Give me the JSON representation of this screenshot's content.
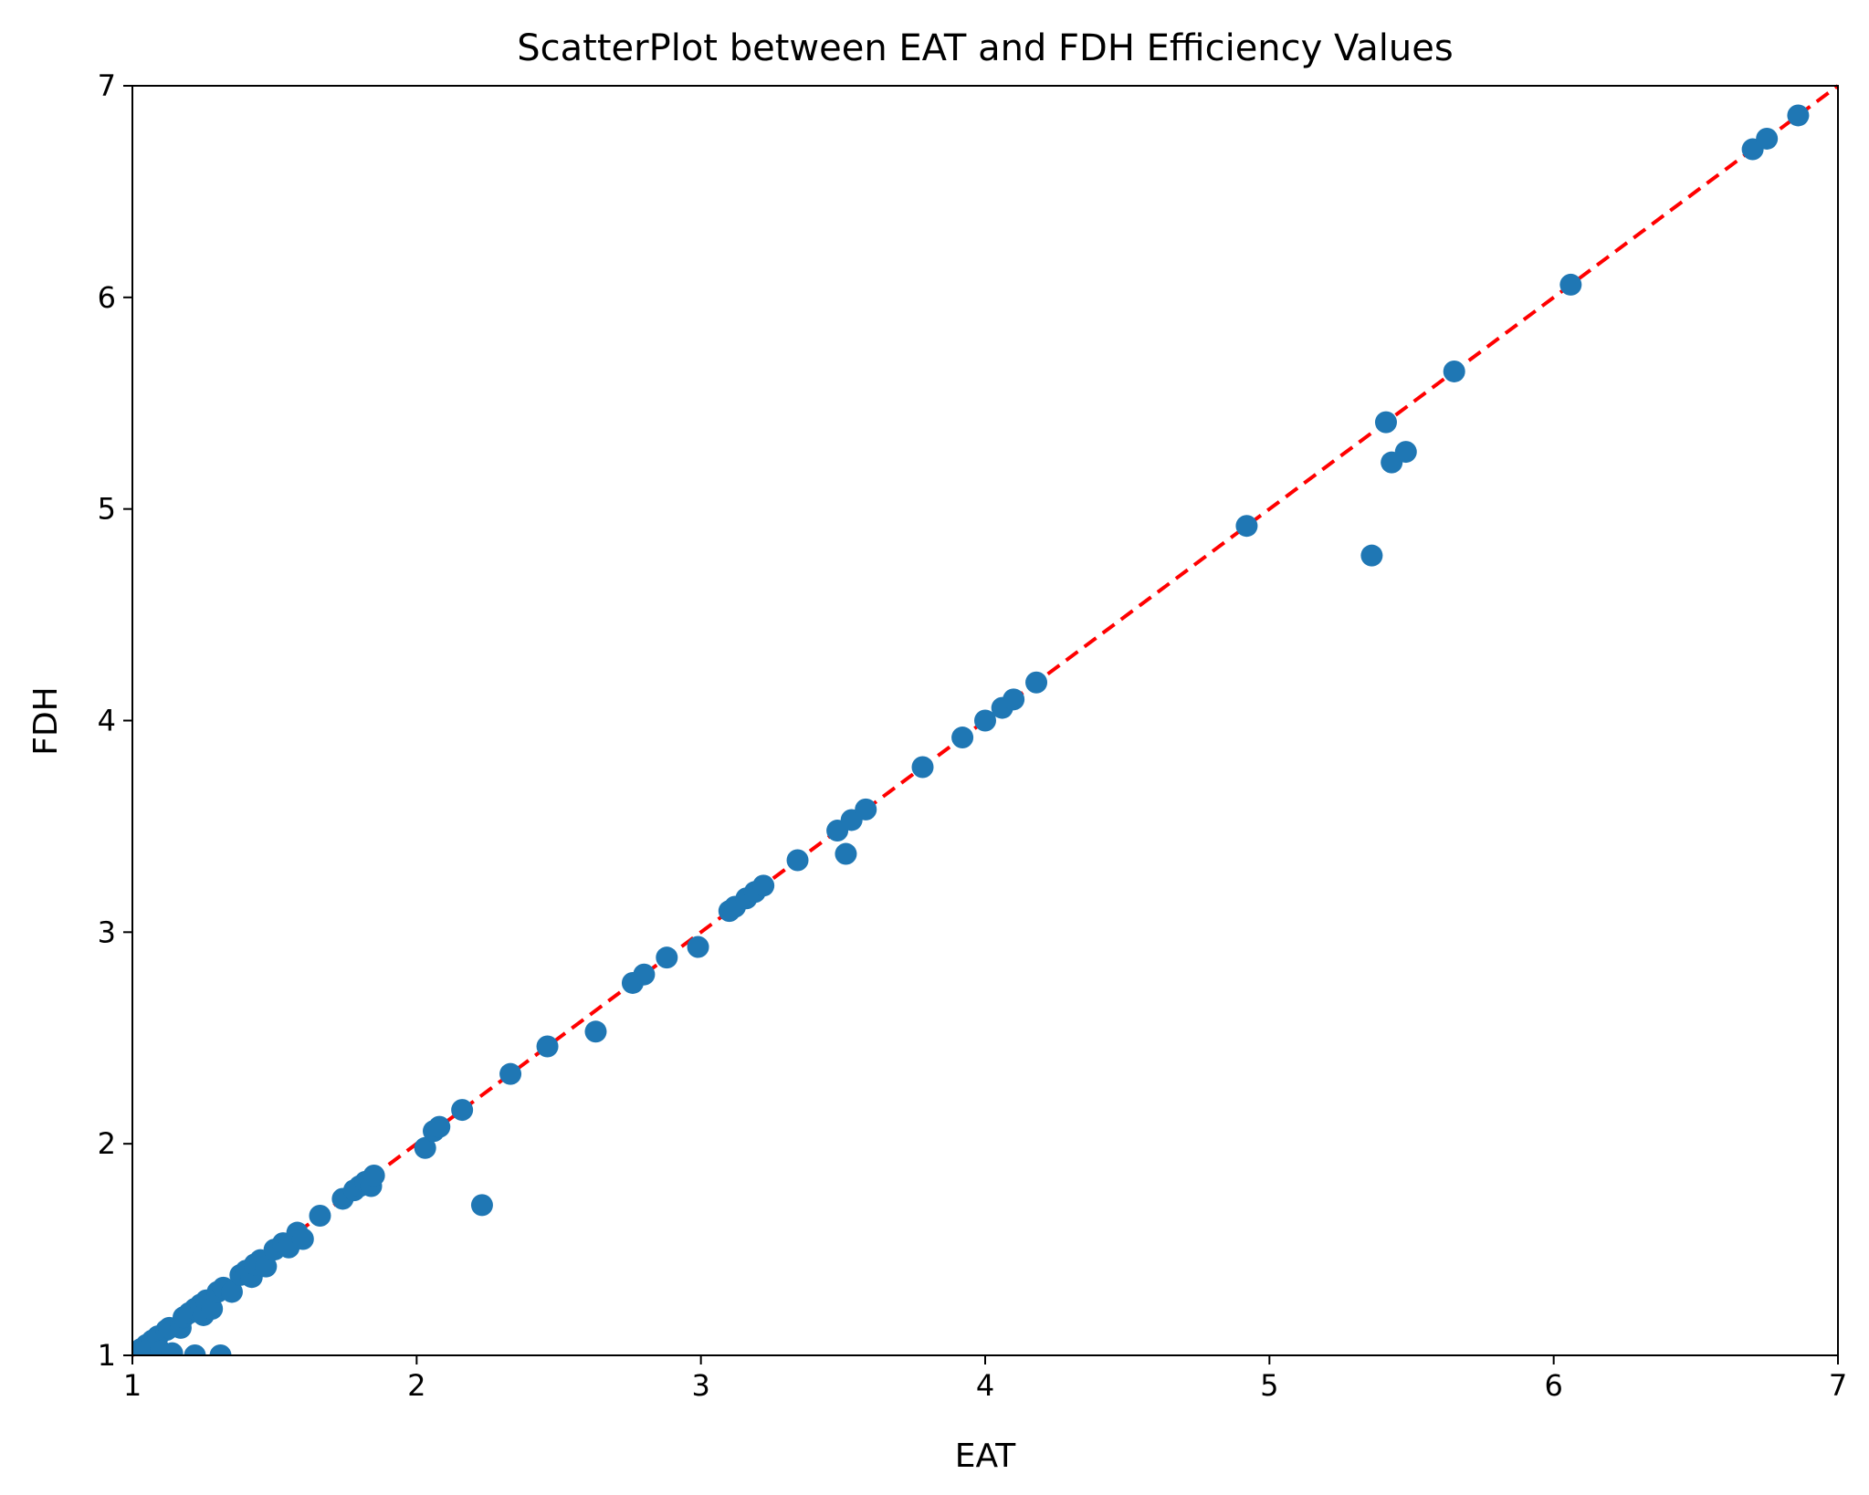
{
  "chart_data": {
    "type": "scatter",
    "title": "ScatterPlot between EAT and FDH Efficiency Values",
    "xlabel": "EAT",
    "ylabel": "FDH",
    "xlim": [
      1,
      7
    ],
    "ylim": [
      1,
      7
    ],
    "xticks": [
      "1",
      "2",
      "3",
      "4",
      "5",
      "6",
      "7"
    ],
    "yticks": [
      "1",
      "2",
      "3",
      "4",
      "5",
      "6",
      "7"
    ],
    "grid": false,
    "legend": "none",
    "colors": {
      "points": "#1f77b4",
      "reference_line": "#ff0000",
      "axes": "#000000"
    },
    "reference_line": {
      "style": "dashed",
      "points": [
        [
          1,
          1
        ],
        [
          7,
          7
        ]
      ]
    },
    "series": [
      {
        "points": [
          [
            1.0,
            1.0
          ],
          [
            1.03,
            1.03
          ],
          [
            1.05,
            1.05
          ],
          [
            1.07,
            1.07
          ],
          [
            1.09,
            1.09
          ],
          [
            1.1,
            1.02
          ],
          [
            1.12,
            1.12
          ],
          [
            1.13,
            1.13
          ],
          [
            1.14,
            1.01
          ],
          [
            1.17,
            1.13
          ],
          [
            1.18,
            1.18
          ],
          [
            1.2,
            1.2
          ],
          [
            1.22,
            1.0
          ],
          [
            1.22,
            1.22
          ],
          [
            1.24,
            1.24
          ],
          [
            1.25,
            1.19
          ],
          [
            1.26,
            1.26
          ],
          [
            1.28,
            1.22
          ],
          [
            1.3,
            1.3
          ],
          [
            1.31,
            1.0
          ],
          [
            1.32,
            1.32
          ],
          [
            1.35,
            1.3
          ],
          [
            1.38,
            1.38
          ],
          [
            1.4,
            1.4
          ],
          [
            1.42,
            1.37
          ],
          [
            1.43,
            1.43
          ],
          [
            1.45,
            1.45
          ],
          [
            1.47,
            1.42
          ],
          [
            1.5,
            1.5
          ],
          [
            1.53,
            1.53
          ],
          [
            1.55,
            1.51
          ],
          [
            1.58,
            1.58
          ],
          [
            1.6,
            1.55
          ],
          [
            1.66,
            1.66
          ],
          [
            1.74,
            1.74
          ],
          [
            1.78,
            1.78
          ],
          [
            1.8,
            1.8
          ],
          [
            1.82,
            1.82
          ],
          [
            1.84,
            1.8
          ],
          [
            1.85,
            1.85
          ],
          [
            2.03,
            1.98
          ],
          [
            2.06,
            2.06
          ],
          [
            2.08,
            2.08
          ],
          [
            2.16,
            2.16
          ],
          [
            2.23,
            1.71
          ],
          [
            2.33,
            2.33
          ],
          [
            2.46,
            2.46
          ],
          [
            2.63,
            2.53
          ],
          [
            2.76,
            2.76
          ],
          [
            2.8,
            2.8
          ],
          [
            2.88,
            2.88
          ],
          [
            2.99,
            2.93
          ],
          [
            3.1,
            3.1
          ],
          [
            3.12,
            3.12
          ],
          [
            3.16,
            3.16
          ],
          [
            3.19,
            3.19
          ],
          [
            3.22,
            3.22
          ],
          [
            3.34,
            3.34
          ],
          [
            3.48,
            3.48
          ],
          [
            3.51,
            3.37
          ],
          [
            3.53,
            3.53
          ],
          [
            3.58,
            3.58
          ],
          [
            3.78,
            3.78
          ],
          [
            3.92,
            3.92
          ],
          [
            4.0,
            4.0
          ],
          [
            4.06,
            4.06
          ],
          [
            4.1,
            4.1
          ],
          [
            4.18,
            4.18
          ],
          [
            4.92,
            4.92
          ],
          [
            5.36,
            4.78
          ],
          [
            5.41,
            5.41
          ],
          [
            5.43,
            5.22
          ],
          [
            5.48,
            5.27
          ],
          [
            5.65,
            5.65
          ],
          [
            6.06,
            6.06
          ],
          [
            6.7,
            6.7
          ],
          [
            6.75,
            6.75
          ],
          [
            6.86,
            6.86
          ]
        ]
      }
    ]
  }
}
